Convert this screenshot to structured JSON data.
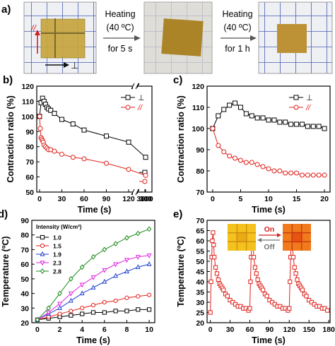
{
  "panel_a": {
    "label": "a)",
    "symbol_parallel": "//",
    "symbol_perp": "⊥",
    "step1": {
      "line1": "Heating",
      "line2": "(40 ºC)",
      "line3": "for 5 s"
    },
    "step2": {
      "line1": "Heating",
      "line2": "(40 ºC)",
      "line3": "for 1 h"
    }
  },
  "chart_data": [
    {
      "type": "line",
      "panel_label": "b)",
      "xlabel": "Time (s)",
      "ylabel": "Contraction ratio (%)",
      "ylim": [
        50,
        120
      ],
      "broken_axis": true,
      "x_ticks": [
        "0",
        "30",
        "60",
        "90",
        "120",
        "300",
        "3600"
      ],
      "y_ticks": [
        "50",
        "60",
        "70",
        "80",
        "90",
        "100",
        "110",
        "120"
      ],
      "legend_position": "top-right",
      "series": [
        {
          "name": "⊥",
          "color": "#000000",
          "marker": "square",
          "x": [
            0,
            2,
            4,
            6,
            8,
            10,
            12,
            15,
            20,
            30,
            45,
            60,
            90,
            120,
            300,
            3600
          ],
          "y": [
            100,
            109,
            112,
            110,
            108,
            106,
            105,
            104,
            102,
            98,
            95,
            91,
            87,
            83,
            73,
            63
          ]
        },
        {
          "name": "//",
          "color": "#e0201b",
          "marker": "circle",
          "x": [
            0,
            1,
            2,
            3,
            4,
            5,
            6,
            8,
            10,
            12,
            15,
            20,
            30,
            45,
            60,
            90,
            120,
            300,
            3600
          ],
          "y": [
            100,
            92,
            86,
            85,
            84,
            83,
            81,
            80,
            79,
            78,
            78,
            77,
            75,
            73,
            72,
            69,
            65,
            61,
            57
          ]
        }
      ]
    },
    {
      "type": "line",
      "panel_label": "c)",
      "xlabel": "Time (s)",
      "ylabel": "Contraction ratio (%)",
      "xlim": [
        -1,
        21
      ],
      "ylim": [
        70,
        120
      ],
      "x_ticks": [
        "0",
        "5",
        "10",
        "15",
        "20"
      ],
      "y_ticks": [
        "70",
        "80",
        "90",
        "100",
        "110",
        "120"
      ],
      "legend_position": "top-right",
      "series": [
        {
          "name": "⊥",
          "color": "#000000",
          "marker": "square",
          "x": [
            0,
            1,
            2,
            3,
            4,
            5,
            6,
            7,
            8,
            9,
            10,
            11,
            12,
            13,
            14,
            15,
            16,
            17,
            18,
            19,
            20
          ],
          "y": [
            100,
            106,
            109,
            111,
            112,
            110,
            107,
            106,
            105,
            105,
            104,
            104,
            103,
            103,
            102,
            102,
            102,
            101,
            101,
            101,
            100
          ]
        },
        {
          "name": "//",
          "color": "#e0201b",
          "marker": "circle",
          "x": [
            0,
            1,
            2,
            3,
            4,
            5,
            6,
            7,
            8,
            9,
            10,
            11,
            12,
            13,
            14,
            15,
            16,
            17,
            18,
            19,
            20
          ],
          "y": [
            100,
            92,
            89,
            87,
            86,
            85,
            84,
            84,
            83,
            82,
            81,
            80,
            80,
            79,
            79,
            79,
            78,
            78,
            78,
            78,
            78
          ]
        }
      ]
    },
    {
      "type": "line",
      "panel_label": "d)",
      "xlabel": "Time (s)",
      "ylabel": "Temperature (ºC)",
      "xlim": [
        -0.5,
        10.5
      ],
      "ylim": [
        20,
        90
      ],
      "x_ticks": [
        "0",
        "2",
        "4",
        "6",
        "8",
        "10"
      ],
      "y_ticks": [
        "20",
        "30",
        "40",
        "50",
        "60",
        "70",
        "80",
        "90"
      ],
      "legend_title": "Intensity (W/cm²)",
      "legend_position": "top-left",
      "series": [
        {
          "name": "1.0",
          "color": "#000000",
          "marker": "square",
          "x": [
            0,
            1,
            2,
            3,
            4,
            5,
            6,
            7,
            8,
            9,
            10
          ],
          "y": [
            22,
            23,
            24,
            25,
            26,
            27,
            27,
            28,
            28,
            29,
            29
          ]
        },
        {
          "name": "1.5",
          "color": "#e0201b",
          "marker": "circle",
          "x": [
            0,
            1,
            2,
            3,
            4,
            5,
            6,
            7,
            8,
            9,
            10
          ],
          "y": [
            22,
            24,
            26,
            28,
            30,
            32,
            34,
            35,
            37,
            38,
            39
          ]
        },
        {
          "name": "1.9",
          "color": "#1f3fd0",
          "marker": "triangle",
          "x": [
            0,
            1,
            2,
            3,
            4,
            5,
            6,
            7,
            8,
            9,
            10
          ],
          "y": [
            22,
            26,
            30,
            35,
            40,
            44,
            48,
            52,
            55,
            58,
            60
          ]
        },
        {
          "name": "2.3",
          "color": "#e020e0",
          "marker": "triangle-down",
          "x": [
            0,
            1,
            2,
            3,
            4,
            5,
            6,
            7,
            8,
            9,
            10
          ],
          "y": [
            22,
            27,
            33,
            40,
            46,
            51,
            56,
            60,
            63,
            65,
            66
          ]
        },
        {
          "name": "2.8",
          "color": "#1a8a1a",
          "marker": "diamond",
          "x": [
            0,
            1,
            2,
            3,
            4,
            5,
            6,
            7,
            8,
            9,
            10
          ],
          "y": [
            22,
            30,
            40,
            50,
            58,
            65,
            70,
            74,
            78,
            81,
            84
          ]
        }
      ]
    },
    {
      "type": "line",
      "panel_label": "e)",
      "xlabel": "Time (s)",
      "ylabel": "Temperature (ºC)",
      "xlim": [
        -5,
        182
      ],
      "ylim": [
        20,
        70
      ],
      "x_ticks": [
        "0",
        "30",
        "60",
        "90",
        "120",
        "150",
        "180"
      ],
      "y_ticks": [
        "20",
        "25",
        "30",
        "35",
        "40",
        "45",
        "50",
        "55",
        "60",
        "65",
        "70"
      ],
      "annotation_on": "On",
      "annotation_off": "Off",
      "series": [
        {
          "name": "",
          "color": "#e0201b",
          "marker": "square",
          "x": [
            0,
            1,
            2,
            3,
            4,
            5,
            6,
            8,
            10,
            12,
            14,
            16,
            18,
            20,
            23,
            26,
            30,
            34,
            38,
            42,
            46,
            50,
            54,
            58,
            60,
            61,
            62,
            63,
            64,
            65,
            66,
            68,
            70,
            72,
            74,
            76,
            78,
            80,
            83,
            86,
            90,
            94,
            98,
            102,
            106,
            110,
            114,
            118,
            120,
            121,
            122,
            123,
            124,
            125,
            126,
            128,
            130,
            132,
            134,
            136,
            138,
            140,
            143,
            146,
            150,
            154,
            158,
            162,
            166,
            170,
            174,
            178
          ],
          "y": [
            25,
            40,
            52,
            60,
            64,
            58,
            52,
            47,
            44,
            41,
            39,
            38,
            37,
            36,
            34,
            33,
            31,
            30,
            29,
            28,
            28,
            27,
            27,
            26,
            27,
            40,
            52,
            60,
            64,
            58,
            52,
            47,
            44,
            41,
            39,
            38,
            37,
            36,
            34,
            33,
            31,
            30,
            29,
            28,
            28,
            27,
            27,
            26,
            27,
            40,
            52,
            60,
            64,
            58,
            52,
            47,
            44,
            41,
            39,
            38,
            37,
            36,
            34,
            33,
            31,
            30,
            29,
            28,
            28,
            27,
            27,
            26
          ]
        }
      ]
    }
  ]
}
